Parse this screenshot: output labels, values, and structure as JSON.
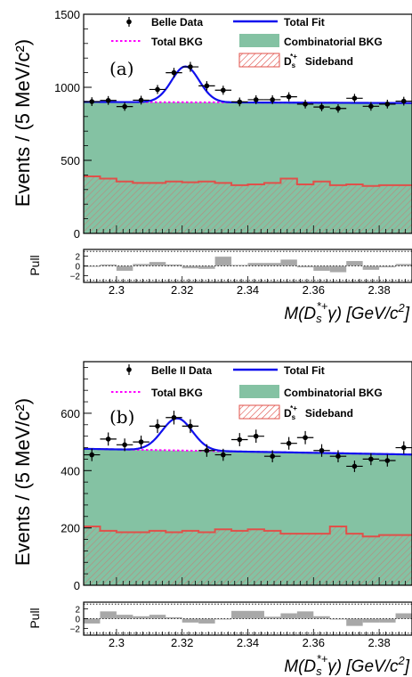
{
  "chart_data": [
    {
      "type": "line",
      "panel_label": "(a)",
      "ylabel": "Events / (5 MeV/c²)",
      "xlabel": "M(D_s^{*+}γ)   [GeV/c²]",
      "xlim": [
        2.29,
        2.39
      ],
      "ylim": [
        0,
        1500
      ],
      "yticks": [
        0,
        500,
        1000,
        1500
      ],
      "xticks": [
        2.3,
        2.32,
        2.34,
        2.36,
        2.38
      ],
      "legend": {
        "data": "Belle Data",
        "fit": "Total Fit",
        "bkg": "Total BKG",
        "comb": "Combinatorial BKG",
        "side_prefix": "D",
        "side_sub": "s",
        "side_sup": "*+",
        "side_suffix": "Sideband"
      },
      "bin_width": 0.005,
      "x": [
        2.2925,
        2.2975,
        2.3025,
        2.3075,
        2.3125,
        2.3175,
        2.3225,
        2.3275,
        2.3325,
        2.3375,
        2.3425,
        2.3475,
        2.3525,
        2.3575,
        2.3625,
        2.3675,
        2.3725,
        2.3775,
        2.3825,
        2.3875
      ],
      "data_y": [
        902,
        910,
        868,
        912,
        985,
        1100,
        1140,
        1010,
        980,
        900,
        915,
        915,
        935,
        885,
        865,
        855,
        925,
        870,
        885,
        905
      ],
      "data_err": [
        30,
        30,
        29,
        30,
        31,
        33,
        34,
        32,
        31,
        30,
        30,
        30,
        31,
        30,
        29,
        29,
        30,
        30,
        30,
        30
      ],
      "combinatorial": [
        900,
        900,
        898,
        898,
        897,
        897,
        896,
        896,
        895,
        895,
        895,
        894,
        894,
        894,
        893,
        893,
        893,
        892,
        892,
        892
      ],
      "sideband": [
        390,
        375,
        355,
        345,
        345,
        355,
        350,
        355,
        345,
        330,
        335,
        345,
        375,
        335,
        355,
        330,
        335,
        325,
        330,
        330
      ],
      "pull": [
        0.0,
        0.3,
        -1.0,
        0.4,
        0.8,
        0.3,
        -0.5,
        -0.6,
        1.9,
        0.2,
        0.6,
        0.6,
        1.3,
        -0.3,
        -1.0,
        -1.3,
        1.0,
        -0.8,
        -0.3,
        0.4
      ],
      "fit": {
        "baseline": [
          900,
          892
        ],
        "peak_mean": 2.321,
        "peak_sigma": 0.0042,
        "peak_amplitude": 245
      },
      "pull_ylabel": "Pull",
      "pull_ticks": [
        "2",
        "0",
        "−2"
      ],
      "pull_lines": [
        -3,
        0,
        3
      ]
    },
    {
      "type": "line",
      "panel_label": "(b)",
      "ylabel": "Events / (5 MeV/c²)",
      "xlabel": "M(D_s^{*+}γ)   [GeV/c²]",
      "xlim": [
        2.29,
        2.39
      ],
      "ylim": [
        0,
        780
      ],
      "yticks": [
        0,
        200,
        400,
        600
      ],
      "xticks": [
        2.3,
        2.32,
        2.34,
        2.36,
        2.38
      ],
      "legend": {
        "data": "Belle II Data",
        "fit": "Total Fit",
        "bkg": "Total BKG",
        "comb": "Combinatorial BKG",
        "side_prefix": "D",
        "side_sub": "s",
        "side_sup": "*+",
        "side_suffix": "Sideband"
      },
      "bin_width": 0.005,
      "x": [
        2.2925,
        2.2975,
        2.3025,
        2.3075,
        2.3125,
        2.3175,
        2.3225,
        2.3275,
        2.3325,
        2.3375,
        2.3425,
        2.3475,
        2.3525,
        2.3575,
        2.3625,
        2.3675,
        2.3725,
        2.3775,
        2.3825,
        2.3875
      ],
      "data_y": [
        455,
        510,
        490,
        500,
        555,
        585,
        555,
        470,
        455,
        508,
        520,
        450,
        495,
        515,
        470,
        450,
        415,
        440,
        435,
        480
      ],
      "data_err": [
        22,
        23,
        22,
        22,
        24,
        24,
        24,
        22,
        21,
        23,
        23,
        21,
        22,
        23,
        22,
        21,
        20,
        21,
        21,
        22
      ],
      "combinatorial": [
        475,
        474,
        473,
        472,
        471,
        470,
        469,
        468,
        467,
        466,
        465,
        464,
        463,
        462,
        461,
        460,
        459,
        458,
        457,
        456
      ],
      "sideband": [
        205,
        190,
        185,
        185,
        190,
        185,
        190,
        185,
        195,
        190,
        195,
        190,
        180,
        180,
        180,
        205,
        180,
        170,
        175,
        175
      ],
      "pull": [
        -1.0,
        1.5,
        0.8,
        0.5,
        0.8,
        0.3,
        -0.8,
        -1.0,
        0.0,
        1.6,
        1.6,
        0.4,
        1.1,
        1.5,
        0.5,
        0.0,
        -1.5,
        -0.8,
        -0.8,
        1.1
      ],
      "fit": {
        "baseline": [
          476,
          456
        ],
        "peak_mean": 2.3185,
        "peak_sigma": 0.0046,
        "peak_amplitude": 112
      },
      "pull_ylabel": "Pull",
      "pull_ticks": [
        "2",
        "0",
        "−2"
      ],
      "pull_lines": [
        -3,
        0,
        3
      ]
    }
  ],
  "colors": {
    "combinatorial": "#84c2a3",
    "sideband_line": "#e0504a",
    "sideband_hatch": "#b58e80",
    "fit": "#1010ee",
    "total_bkg": "#ff00ff",
    "pull_fill": "#a8a8a8",
    "data": "#000000"
  }
}
